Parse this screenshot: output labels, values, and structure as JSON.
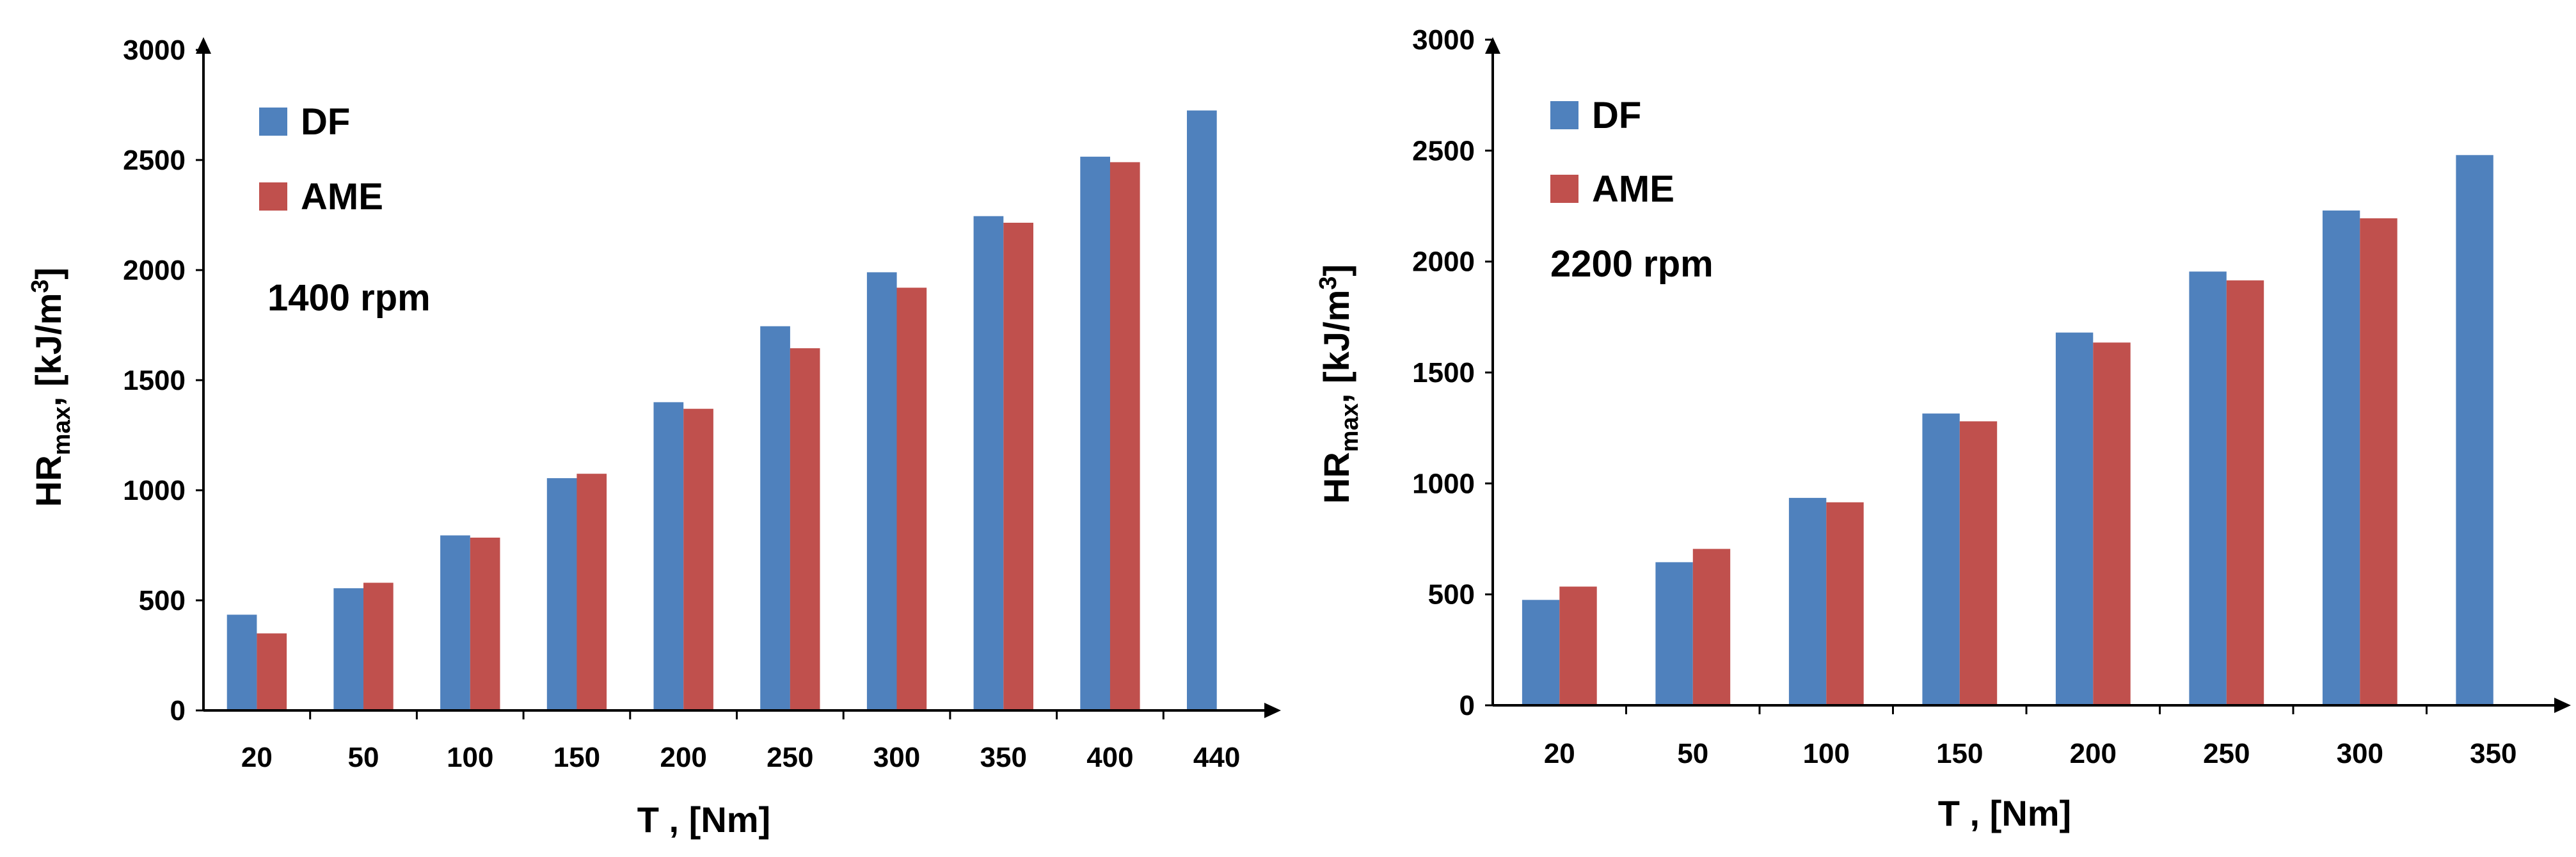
{
  "chart_data": [
    {
      "type": "bar",
      "annotation": "1400 rpm",
      "categories": [
        "20",
        "50",
        "100",
        "150",
        "200",
        "250",
        "300",
        "350",
        "400",
        "440"
      ],
      "series": [
        {
          "name": "DF",
          "color": "#4F81BD",
          "values": [
            435,
            555,
            795,
            1055,
            1400,
            1745,
            1990,
            2245,
            2515,
            2725
          ]
        },
        {
          "name": "AME",
          "color": "#C0504D",
          "values": [
            350,
            580,
            785,
            1075,
            1370,
            1645,
            1920,
            2215,
            2490,
            null
          ]
        }
      ],
      "xlabel": "T , [Nm]",
      "ylabel": "HR",
      "ylabel_sub": "max",
      "ylabel_unit_prefix": ", [kJ/m",
      "ylabel_unit_sup": "3",
      "ylabel_unit_suffix": "]",
      "ylim": [
        0,
        3000
      ],
      "yticks": [
        "0",
        "500",
        "1000",
        "1500",
        "2000",
        "2500",
        "3000"
      ],
      "legend_position": "top-left"
    },
    {
      "type": "bar",
      "annotation": "2200 rpm",
      "categories": [
        "20",
        "50",
        "100",
        "150",
        "200",
        "250",
        "300",
        "350"
      ],
      "series": [
        {
          "name": "DF",
          "color": "#4F81BD",
          "values": [
            475,
            645,
            935,
            1315,
            1680,
            1955,
            2230,
            2480
          ]
        },
        {
          "name": "AME",
          "color": "#C0504D",
          "values": [
            535,
            705,
            915,
            1280,
            1635,
            1915,
            2195,
            null
          ]
        }
      ],
      "xlabel": "T , [Nm]",
      "ylabel": "HR",
      "ylabel_sub": "max",
      "ylabel_unit_prefix": ", [kJ/m",
      "ylabel_unit_sup": "3",
      "ylabel_unit_suffix": "]",
      "ylim": [
        0,
        3000
      ],
      "yticks": [
        "0",
        "500",
        "1000",
        "1500",
        "2000",
        "2500",
        "3000"
      ],
      "legend_position": "top-left"
    }
  ]
}
